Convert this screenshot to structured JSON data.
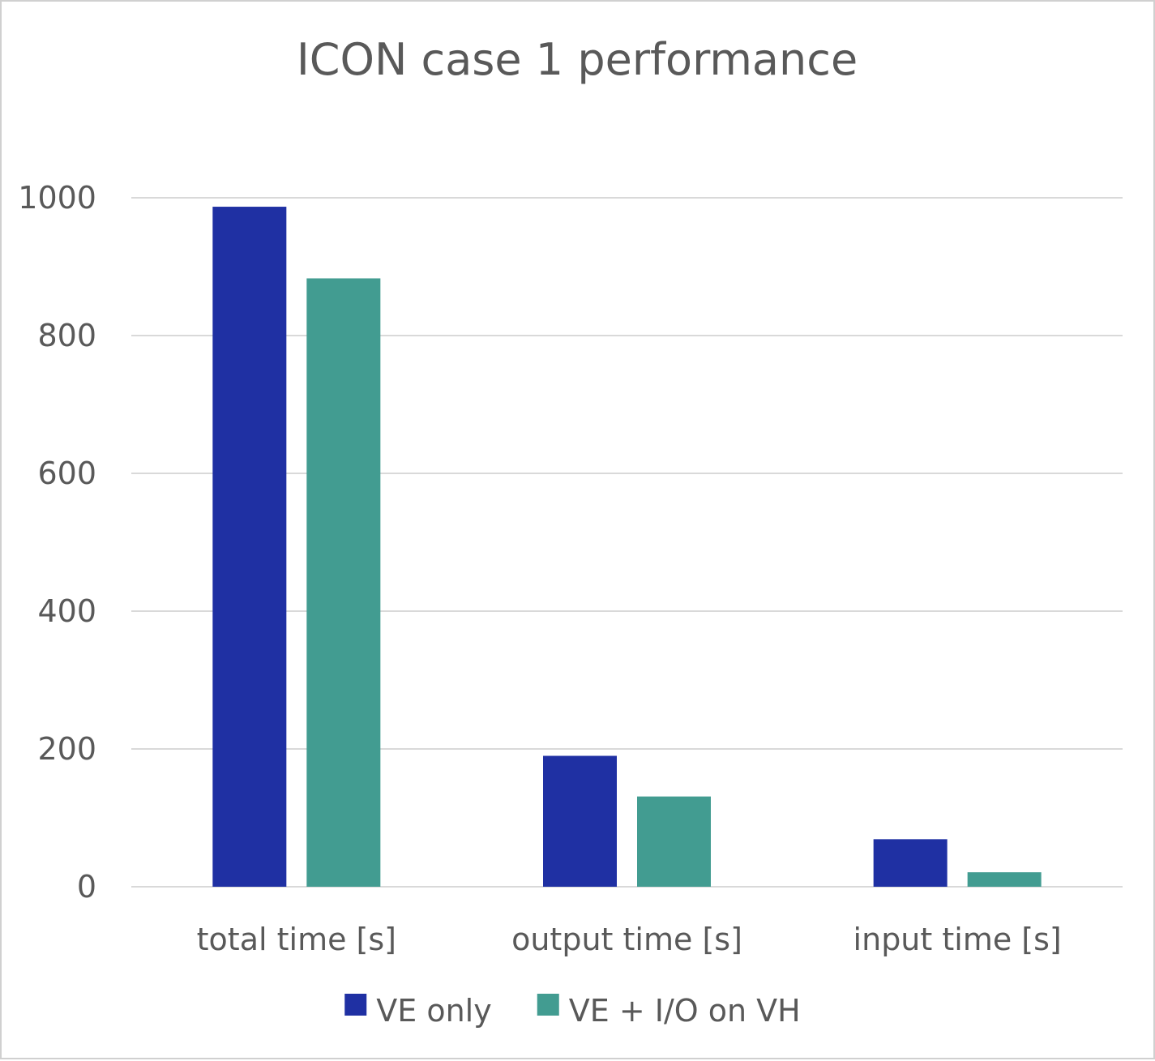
{
  "chart_data": {
    "type": "bar",
    "title": "ICON case 1 performance",
    "categories": [
      "total time [s]",
      "output time [s]",
      "input time [s]"
    ],
    "series": [
      {
        "name": "VE only",
        "color": "#1F30A3",
        "values": [
          987,
          190,
          69
        ]
      },
      {
        "name": "VE + I/O on VH",
        "color": "#429C91",
        "values": [
          883,
          131,
          21
        ]
      }
    ],
    "ylim": [
      0,
      1000
    ],
    "yticks": [
      0,
      200,
      400,
      600,
      800,
      1000
    ],
    "grid": true,
    "legend_position": "bottom"
  }
}
